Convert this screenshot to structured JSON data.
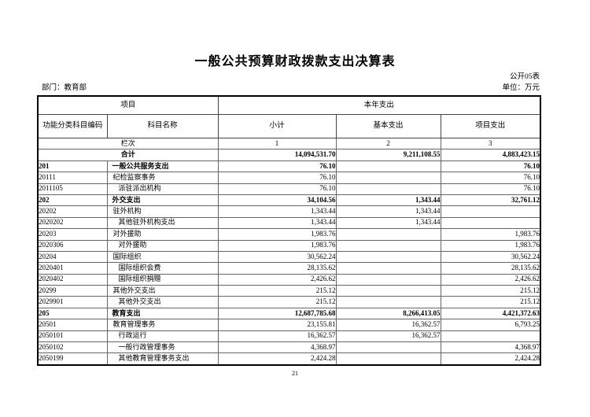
{
  "page": {
    "title": "一般公共预算财政拨款支出决算表",
    "table_code": "公开05表",
    "department_label": "部门：教育部",
    "unit_label": "单位：万元",
    "page_number": "21"
  },
  "table": {
    "header": {
      "project": "项目",
      "current_year": "本年支出",
      "col_code": "功能分类科目编码",
      "col_name": "科目名称",
      "col_subtotal": "小计",
      "col_basic": "基本支出",
      "col_project": "项目支出"
    },
    "lanci": {
      "label": "栏次",
      "col1": "1",
      "col2": "2",
      "col3": "3"
    },
    "total": {
      "label": "合计",
      "subtotal": "14,094,531.70",
      "basic": "9,211,108.55",
      "project": "4,883,423.15"
    },
    "rows": [
      {
        "code": "201",
        "name": "一般公共服务支出",
        "level": 1,
        "subtotal": "76.10",
        "basic": "",
        "project": "76.10"
      },
      {
        "code": "20111",
        "name": "纪检监察事务",
        "level": 2,
        "subtotal": "76.10",
        "basic": "",
        "project": "76.10"
      },
      {
        "code": "2011105",
        "name": "派驻派出机构",
        "level": 3,
        "subtotal": "76.10",
        "basic": "",
        "project": "76.10"
      },
      {
        "code": "202",
        "name": "外交支出",
        "level": 1,
        "subtotal": "34,104.56",
        "basic": "1,343.44",
        "project": "32,761.12"
      },
      {
        "code": "20202",
        "name": "驻外机构",
        "level": 2,
        "subtotal": "1,343.44",
        "basic": "1,343.44",
        "project": ""
      },
      {
        "code": "2020202",
        "name": "其他驻外机构支出",
        "level": 3,
        "subtotal": "1,343.44",
        "basic": "1,343.44",
        "project": ""
      },
      {
        "code": "20203",
        "name": "对外援助",
        "level": 2,
        "subtotal": "1,983.76",
        "basic": "",
        "project": "1,983.76"
      },
      {
        "code": "2020306",
        "name": "对外援助",
        "level": 3,
        "subtotal": "1,983.76",
        "basic": "",
        "project": "1,983.76"
      },
      {
        "code": "20204",
        "name": "国际组织",
        "level": 2,
        "subtotal": "30,562.24",
        "basic": "",
        "project": "30,562.24"
      },
      {
        "code": "2020401",
        "name": "国际组织会费",
        "level": 3,
        "subtotal": "28,135.62",
        "basic": "",
        "project": "28,135.62"
      },
      {
        "code": "2020402",
        "name": "国际组织捐赠",
        "level": 3,
        "subtotal": "2,426.62",
        "basic": "",
        "project": "2,426.62"
      },
      {
        "code": "20299",
        "name": "其他外交支出",
        "level": 2,
        "subtotal": "215.12",
        "basic": "",
        "project": "215.12"
      },
      {
        "code": "2029901",
        "name": "其他外交支出",
        "level": 3,
        "subtotal": "215.12",
        "basic": "",
        "project": "215.12"
      },
      {
        "code": "205",
        "name": "教育支出",
        "level": 1,
        "subtotal": "12,687,785.68",
        "basic": "8,266,413.05",
        "project": "4,421,372.63"
      },
      {
        "code": "20501",
        "name": "教育管理事务",
        "level": 2,
        "subtotal": "23,155.81",
        "basic": "16,362.57",
        "project": "6,793.25"
      },
      {
        "code": "2050101",
        "name": "行政运行",
        "level": 3,
        "subtotal": "16,362.57",
        "basic": "16,362.57",
        "project": ""
      },
      {
        "code": "2050102",
        "name": "一般行政管理事务",
        "level": 3,
        "subtotal": "4,368.97",
        "basic": "",
        "project": "4,368.97"
      },
      {
        "code": "2050199",
        "name": "其他教育管理事务支出",
        "level": 3,
        "subtotal": "2,424.28",
        "basic": "",
        "project": "2,424.28"
      }
    ]
  }
}
